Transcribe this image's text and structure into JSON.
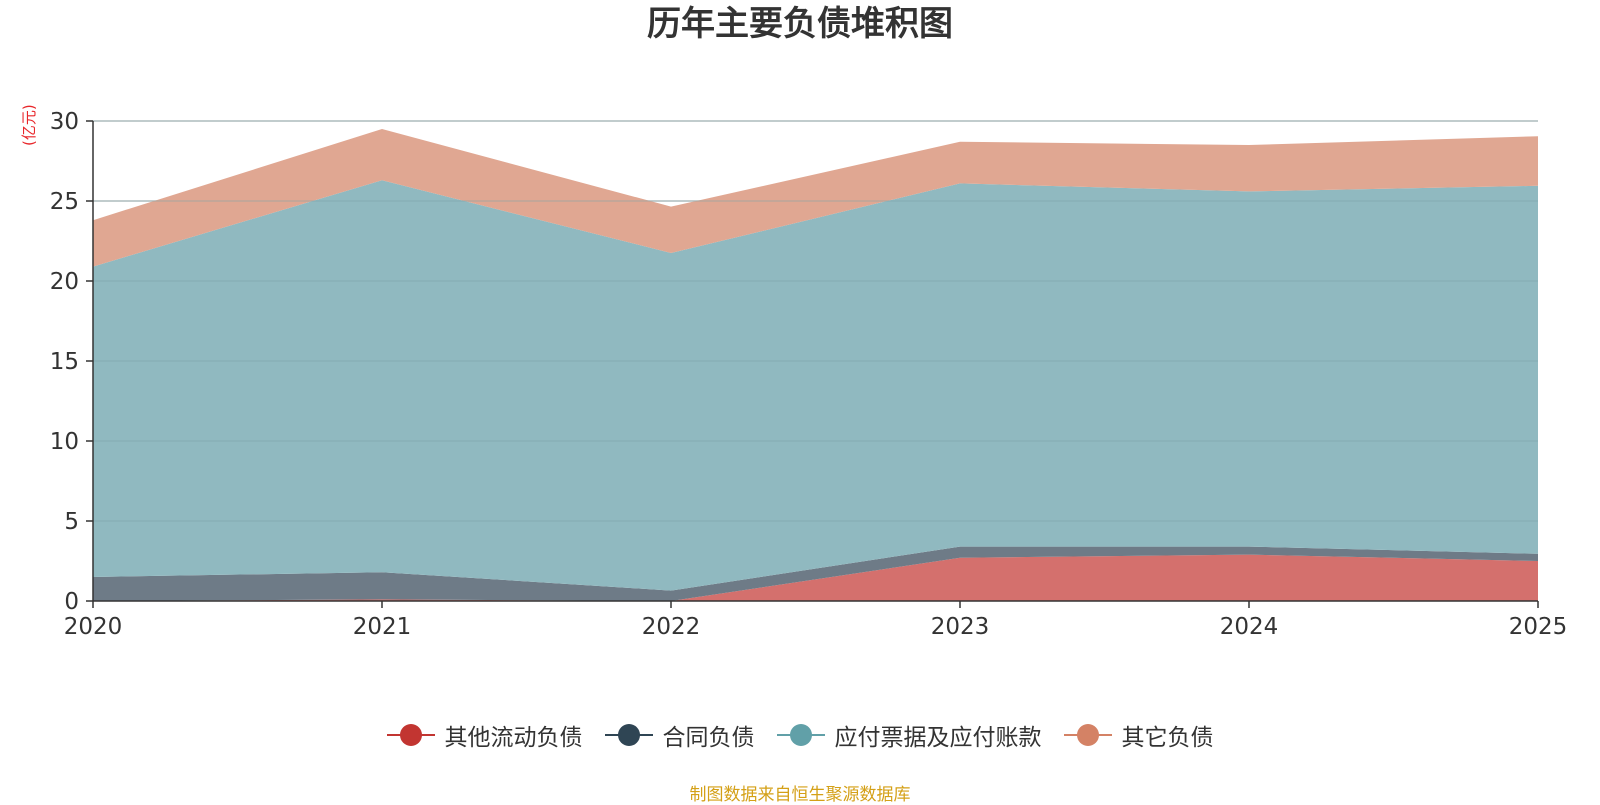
{
  "title": "历年主要负债堆积图",
  "unit": "(亿元)",
  "source": "制图数据来自恒生聚源数据库",
  "chart_data": {
    "type": "area",
    "stacked": true,
    "title": "历年主要负债堆积图",
    "ylabel": "(亿元)",
    "xlabel": "",
    "categories": [
      "2020",
      "2021",
      "2022",
      "2023",
      "2024",
      "2025"
    ],
    "ylim": [
      0,
      30
    ],
    "yticks": [
      0,
      5,
      10,
      15,
      20,
      25,
      30
    ],
    "grid": true,
    "legend_position": "bottom",
    "series": [
      {
        "name": "其他流动负债",
        "color": "#c23531",
        "fill": "#d4706d",
        "values": [
          0.0,
          0.1,
          0.0,
          2.7,
          2.9,
          2.5
        ]
      },
      {
        "name": "合同负债",
        "color": "#2f4554",
        "fill": "#6e7b87",
        "values": [
          1.5,
          1.7,
          0.65,
          0.7,
          0.5,
          0.45
        ]
      },
      {
        "name": "应付票据及应付账款",
        "color": "#61a0a8",
        "fill": "#90b9c0",
        "values": [
          19.4,
          24.5,
          21.1,
          22.7,
          22.2,
          23.0
        ]
      },
      {
        "name": "其它负债",
        "color": "#d48265",
        "fill": "#e0a792",
        "values": [
          2.9,
          3.2,
          2.9,
          2.6,
          2.9,
          3.1
        ]
      }
    ]
  }
}
